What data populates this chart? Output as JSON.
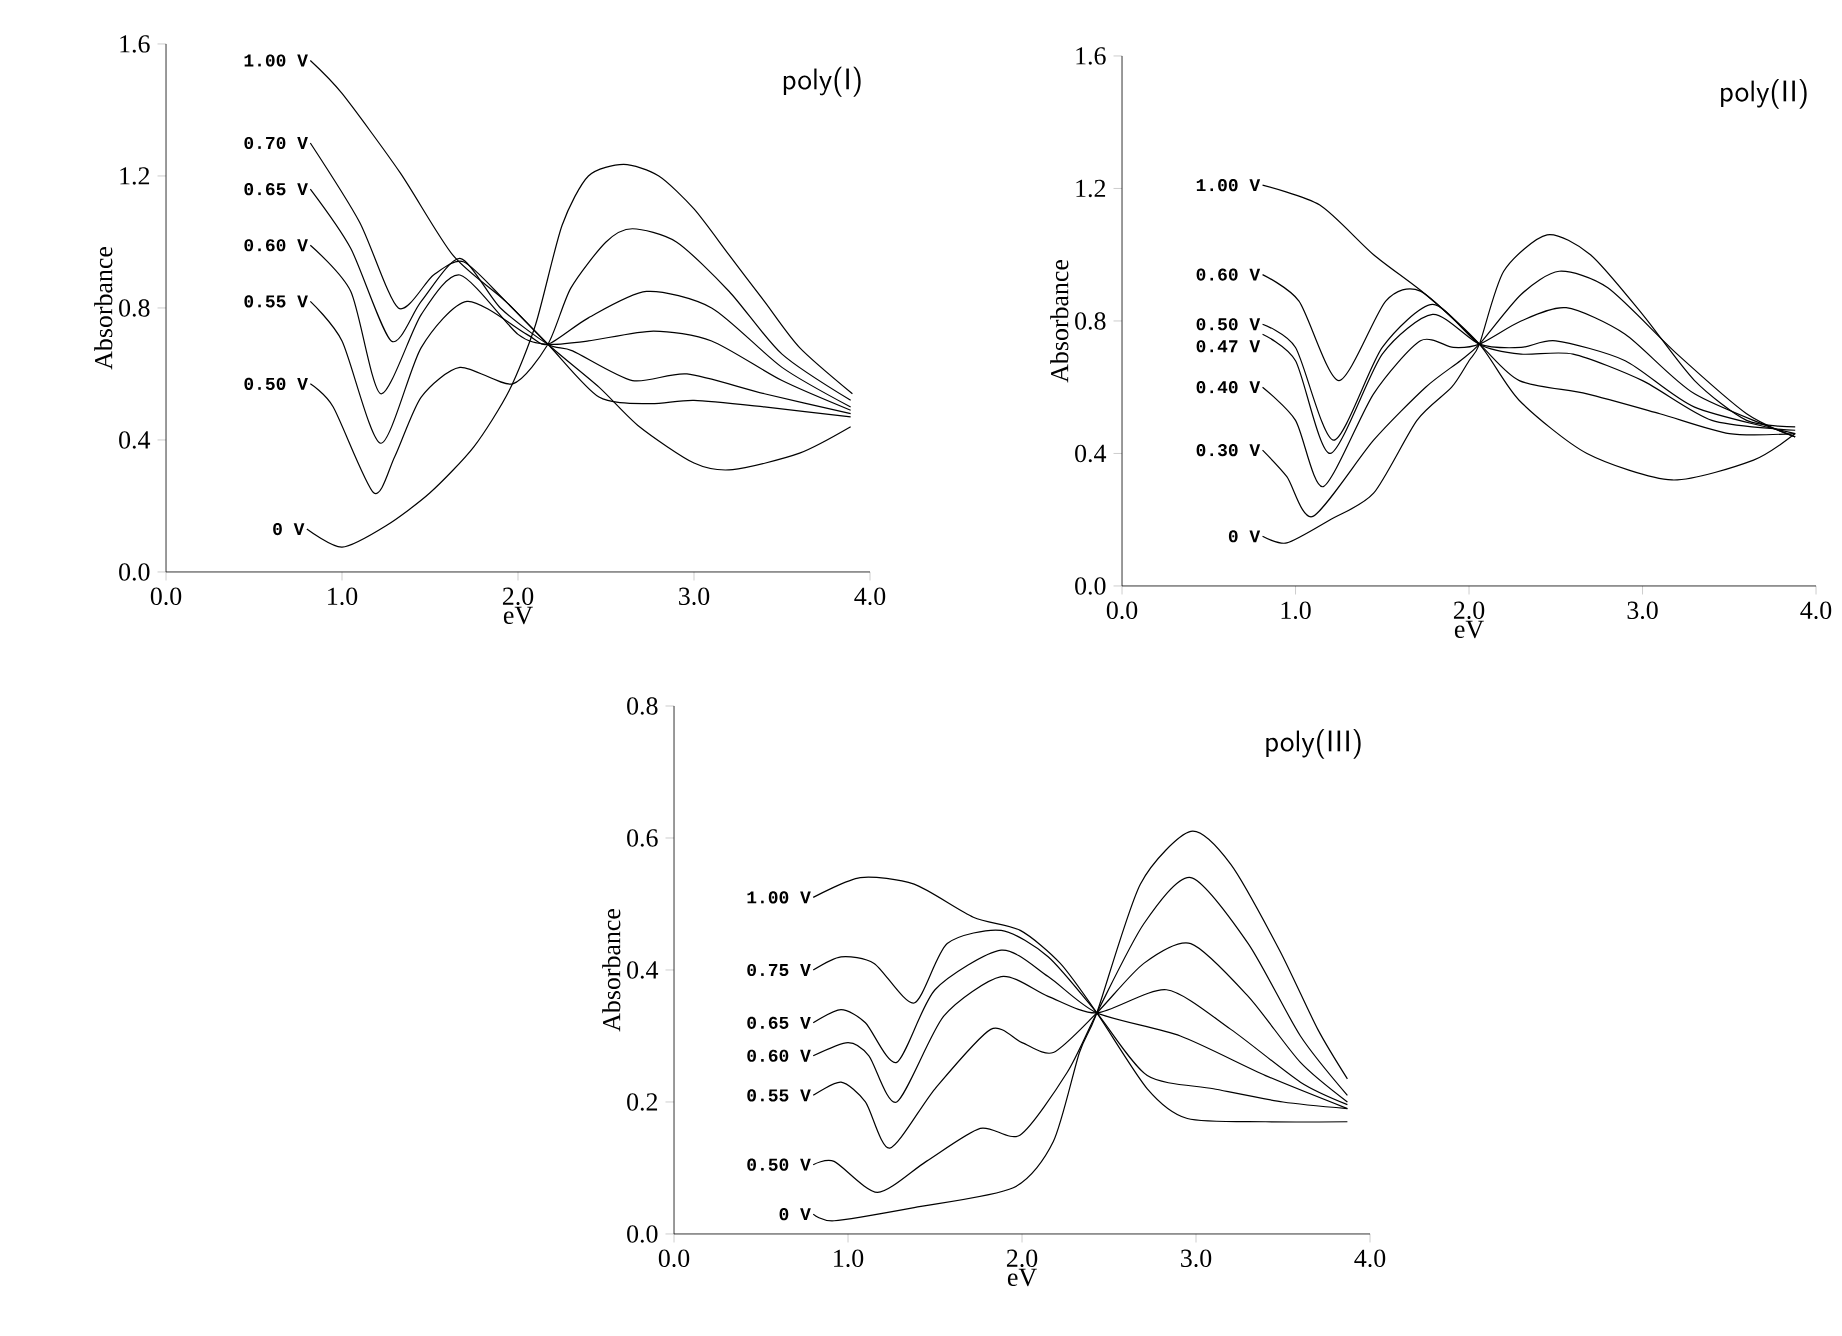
{
  "chart_data": [
    {
      "type": "line",
      "title": "poly(I)",
      "xlabel": "eV",
      "ylabel": "Absorbance",
      "xlim": [
        0,
        4
      ],
      "ylim": [
        0,
        1.6
      ],
      "xticks": [
        {
          "value": 0,
          "label": "0.0"
        },
        {
          "value": 1,
          "label": "1.0"
        },
        {
          "value": 2,
          "label": "2.0"
        },
        {
          "value": 3,
          "label": "3.0"
        },
        {
          "value": 4,
          "label": "4.0"
        }
      ],
      "yticks": [
        {
          "value": 0,
          "label": "0.0"
        },
        {
          "value": 0.4,
          "label": "0.4"
        },
        {
          "value": 0.8,
          "label": "0.8"
        },
        {
          "value": 1.2,
          "label": "1.2"
        },
        {
          "value": 1.6,
          "label": "1.6"
        }
      ],
      "series": [
        {
          "name": "1.00 V",
          "color": "#000000",
          "x": [
            0.82,
            1.0,
            1.33,
            1.63,
            1.93,
            2.17,
            2.46,
            2.69,
            3.0,
            3.22,
            3.6,
            3.89
          ],
          "values": [
            1.55,
            1.45,
            1.21,
            0.96,
            0.82,
            0.69,
            0.56,
            0.44,
            0.33,
            0.31,
            0.36,
            0.44
          ]
        },
        {
          "name": "0.70 V",
          "color": "#000000",
          "x": [
            0.82,
            1.1,
            1.32,
            1.52,
            1.69,
            1.93,
            2.17,
            2.46,
            2.75,
            3.0,
            3.4,
            3.89
          ],
          "values": [
            1.3,
            1.06,
            0.8,
            0.9,
            0.94,
            0.82,
            0.69,
            0.53,
            0.51,
            0.52,
            0.5,
            0.47
          ]
        },
        {
          "name": "0.65 V",
          "color": "#000000",
          "x": [
            0.82,
            1.05,
            1.28,
            1.45,
            1.67,
            1.9,
            2.17,
            2.31,
            2.65,
            2.96,
            3.4,
            3.89
          ],
          "values": [
            1.16,
            0.98,
            0.7,
            0.82,
            0.95,
            0.8,
            0.69,
            0.67,
            0.58,
            0.6,
            0.54,
            0.48
          ]
        },
        {
          "name": "0.60 V",
          "color": "#000000",
          "x": [
            0.82,
            1.05,
            1.22,
            1.45,
            1.67,
            2.0,
            2.17,
            2.4,
            2.77,
            3.1,
            3.5,
            3.89
          ],
          "values": [
            0.99,
            0.85,
            0.54,
            0.78,
            0.9,
            0.72,
            0.69,
            0.7,
            0.73,
            0.7,
            0.58,
            0.49
          ]
        },
        {
          "name": "0.55 V",
          "color": "#000000",
          "x": [
            0.82,
            1.0,
            1.22,
            1.45,
            1.71,
            2.05,
            2.17,
            2.4,
            2.73,
            3.1,
            3.5,
            3.89
          ],
          "values": [
            0.82,
            0.7,
            0.39,
            0.68,
            0.82,
            0.72,
            0.69,
            0.77,
            0.85,
            0.8,
            0.62,
            0.5
          ]
        },
        {
          "name": "0.50 V",
          "color": "#000000",
          "x": [
            0.82,
            0.95,
            1.18,
            1.3,
            1.45,
            1.67,
            1.97,
            2.17,
            2.3,
            2.5,
            2.65,
            2.9,
            3.2,
            3.5,
            3.89
          ],
          "values": [
            0.57,
            0.5,
            0.24,
            0.35,
            0.53,
            0.62,
            0.57,
            0.69,
            0.86,
            1.0,
            1.04,
            1.0,
            0.85,
            0.66,
            0.52
          ]
        },
        {
          "name": "0 V",
          "color": "#000000",
          "x": [
            0.8,
            1.0,
            1.25,
            1.5,
            1.75,
            1.95,
            2.1,
            2.25,
            2.4,
            2.6,
            2.8,
            3.0,
            3.2,
            3.4,
            3.6,
            3.9
          ],
          "values": [
            0.13,
            0.075,
            0.14,
            0.24,
            0.38,
            0.55,
            0.75,
            1.05,
            1.2,
            1.235,
            1.2,
            1.1,
            0.96,
            0.82,
            0.68,
            0.54
          ]
        }
      ]
    },
    {
      "type": "line",
      "title": "poly(II)",
      "xlabel": "eV",
      "ylabel": "Absorbance",
      "xlim": [
        0,
        4
      ],
      "ylim": [
        0,
        1.6
      ],
      "xticks": [
        {
          "value": 0,
          "label": "0.0"
        },
        {
          "value": 1,
          "label": "1.0"
        },
        {
          "value": 2,
          "label": "2.0"
        },
        {
          "value": 3,
          "label": "3.0"
        },
        {
          "value": 4,
          "label": "4.0"
        }
      ],
      "yticks": [
        {
          "value": 0,
          "label": "0.0"
        },
        {
          "value": 0.4,
          "label": "0.4"
        },
        {
          "value": 0.8,
          "label": "0.8"
        },
        {
          "value": 1.2,
          "label": "1.2"
        },
        {
          "value": 1.6,
          "label": "1.6"
        }
      ],
      "series": [
        {
          "name": "1.00 V",
          "color": "#000000",
          "x": [
            0.81,
            1.14,
            1.45,
            1.75,
            2.06,
            2.29,
            2.68,
            3.17,
            3.64,
            3.88
          ],
          "values": [
            1.21,
            1.15,
            1.0,
            0.88,
            0.73,
            0.56,
            0.4,
            0.32,
            0.38,
            0.46
          ]
        },
        {
          "name": "0.60 V",
          "color": "#000000",
          "x": [
            0.81,
            1.02,
            1.25,
            1.52,
            1.72,
            2.06,
            2.29,
            2.68,
            3.1,
            3.5,
            3.88
          ],
          "values": [
            0.94,
            0.86,
            0.62,
            0.86,
            0.89,
            0.73,
            0.62,
            0.58,
            0.52,
            0.46,
            0.46
          ]
        },
        {
          "name": "0.50 V",
          "color": "#000000",
          "x": [
            0.81,
            1.0,
            1.22,
            1.5,
            1.79,
            2.06,
            2.3,
            2.6,
            3.0,
            3.4,
            3.88
          ],
          "values": [
            0.79,
            0.72,
            0.44,
            0.72,
            0.85,
            0.73,
            0.7,
            0.7,
            0.62,
            0.5,
            0.47
          ]
        },
        {
          "name": "0.47 V",
          "color": "#000000",
          "x": [
            0.81,
            1.0,
            1.2,
            1.5,
            1.79,
            2.06,
            2.3,
            2.5,
            2.9,
            3.3,
            3.88
          ],
          "values": [
            0.76,
            0.68,
            0.4,
            0.7,
            0.82,
            0.73,
            0.72,
            0.74,
            0.68,
            0.54,
            0.46
          ]
        },
        {
          "name": "0.40 V",
          "color": "#000000",
          "x": [
            0.81,
            1.0,
            1.16,
            1.45,
            1.72,
            1.91,
            2.06,
            2.3,
            2.56,
            2.9,
            3.3,
            3.88
          ],
          "values": [
            0.6,
            0.5,
            0.3,
            0.58,
            0.74,
            0.72,
            0.73,
            0.8,
            0.84,
            0.76,
            0.58,
            0.45
          ]
        },
        {
          "name": "0.30 V",
          "color": "#000000",
          "x": [
            0.81,
            0.95,
            1.1,
            1.45,
            1.75,
            1.95,
            2.06,
            2.3,
            2.52,
            2.8,
            3.2,
            3.6,
            3.88
          ],
          "values": [
            0.41,
            0.33,
            0.21,
            0.44,
            0.6,
            0.68,
            0.73,
            0.88,
            0.95,
            0.9,
            0.7,
            0.52,
            0.45
          ]
        },
        {
          "name": "0 V",
          "color": "#000000",
          "x": [
            0.81,
            0.95,
            1.2,
            1.45,
            1.7,
            1.9,
            2.0,
            2.06,
            2.2,
            2.45,
            2.7,
            3.0,
            3.3,
            3.6,
            3.88
          ],
          "values": [
            0.15,
            0.13,
            0.2,
            0.28,
            0.5,
            0.6,
            0.68,
            0.73,
            0.95,
            1.06,
            1.0,
            0.82,
            0.62,
            0.5,
            0.48
          ]
        }
      ]
    },
    {
      "type": "line",
      "title": "poly(III)",
      "xlabel": "eV",
      "ylabel": "Absorbance",
      "xlim": [
        0,
        4
      ],
      "ylim": [
        0,
        0.8
      ],
      "xticks": [
        {
          "value": 0,
          "label": "0.0"
        },
        {
          "value": 1,
          "label": "1.0"
        },
        {
          "value": 2,
          "label": "2.0"
        },
        {
          "value": 3,
          "label": "3.0"
        },
        {
          "value": 4,
          "label": "4.0"
        }
      ],
      "yticks": [
        {
          "value": 0,
          "label": "0.0"
        },
        {
          "value": 0.2,
          "label": "0.2"
        },
        {
          "value": 0.4,
          "label": "0.4"
        },
        {
          "value": 0.6,
          "label": "0.6"
        },
        {
          "value": 0.8,
          "label": "0.8"
        }
      ],
      "series": [
        {
          "name": "1.00 V",
          "color": "#000000",
          "x": [
            0.8,
            1.07,
            1.38,
            1.72,
            1.99,
            2.22,
            2.43,
            2.72,
            2.95,
            3.4,
            3.87
          ],
          "values": [
            0.51,
            0.54,
            0.53,
            0.48,
            0.46,
            0.41,
            0.335,
            0.22,
            0.175,
            0.17,
            0.17
          ]
        },
        {
          "name": "0.75 V",
          "color": "#000000",
          "x": [
            0.8,
            0.96,
            1.15,
            1.38,
            1.57,
            1.88,
            2.15,
            2.43,
            2.72,
            3.1,
            3.5,
            3.87
          ],
          "values": [
            0.4,
            0.42,
            0.41,
            0.35,
            0.44,
            0.46,
            0.42,
            0.335,
            0.24,
            0.22,
            0.2,
            0.19
          ]
        },
        {
          "name": "0.65 V",
          "color": "#000000",
          "x": [
            0.8,
            0.96,
            1.1,
            1.28,
            1.5,
            1.88,
            2.15,
            2.43,
            2.91,
            3.4,
            3.87
          ],
          "values": [
            0.32,
            0.34,
            0.32,
            0.26,
            0.37,
            0.43,
            0.39,
            0.335,
            0.3,
            0.24,
            0.19
          ]
        },
        {
          "name": "0.60 V",
          "color": "#000000",
          "x": [
            0.8,
            1.0,
            1.12,
            1.28,
            1.55,
            1.88,
            2.15,
            2.43,
            2.83,
            3.2,
            3.6,
            3.87
          ],
          "values": [
            0.27,
            0.29,
            0.27,
            0.2,
            0.33,
            0.39,
            0.36,
            0.335,
            0.37,
            0.31,
            0.23,
            0.196
          ]
        },
        {
          "name": "0.55 V",
          "color": "#000000",
          "x": [
            0.8,
            0.96,
            1.1,
            1.24,
            1.5,
            1.82,
            2.0,
            2.18,
            2.43,
            2.7,
            2.97,
            3.3,
            3.6,
            3.87
          ],
          "values": [
            0.21,
            0.23,
            0.2,
            0.13,
            0.22,
            0.31,
            0.29,
            0.275,
            0.335,
            0.41,
            0.44,
            0.36,
            0.26,
            0.2
          ]
        },
        {
          "name": "0.50 V",
          "color": "#000000",
          "x": [
            0.8,
            0.92,
            1.17,
            1.45,
            1.76,
            1.99,
            2.26,
            2.43,
            2.7,
            2.97,
            3.3,
            3.6,
            3.87
          ],
          "values": [
            0.105,
            0.11,
            0.063,
            0.11,
            0.16,
            0.15,
            0.245,
            0.335,
            0.47,
            0.54,
            0.44,
            0.3,
            0.21
          ]
        },
        {
          "name": "0 V",
          "color": "#000000",
          "x": [
            0.8,
            0.92,
            1.38,
            1.95,
            2.18,
            2.33,
            2.43,
            2.68,
            2.97,
            3.2,
            3.48,
            3.7,
            3.87
          ],
          "values": [
            0.03,
            0.02,
            0.04,
            0.07,
            0.14,
            0.275,
            0.335,
            0.53,
            0.61,
            0.56,
            0.43,
            0.31,
            0.235
          ]
        }
      ]
    }
  ]
}
